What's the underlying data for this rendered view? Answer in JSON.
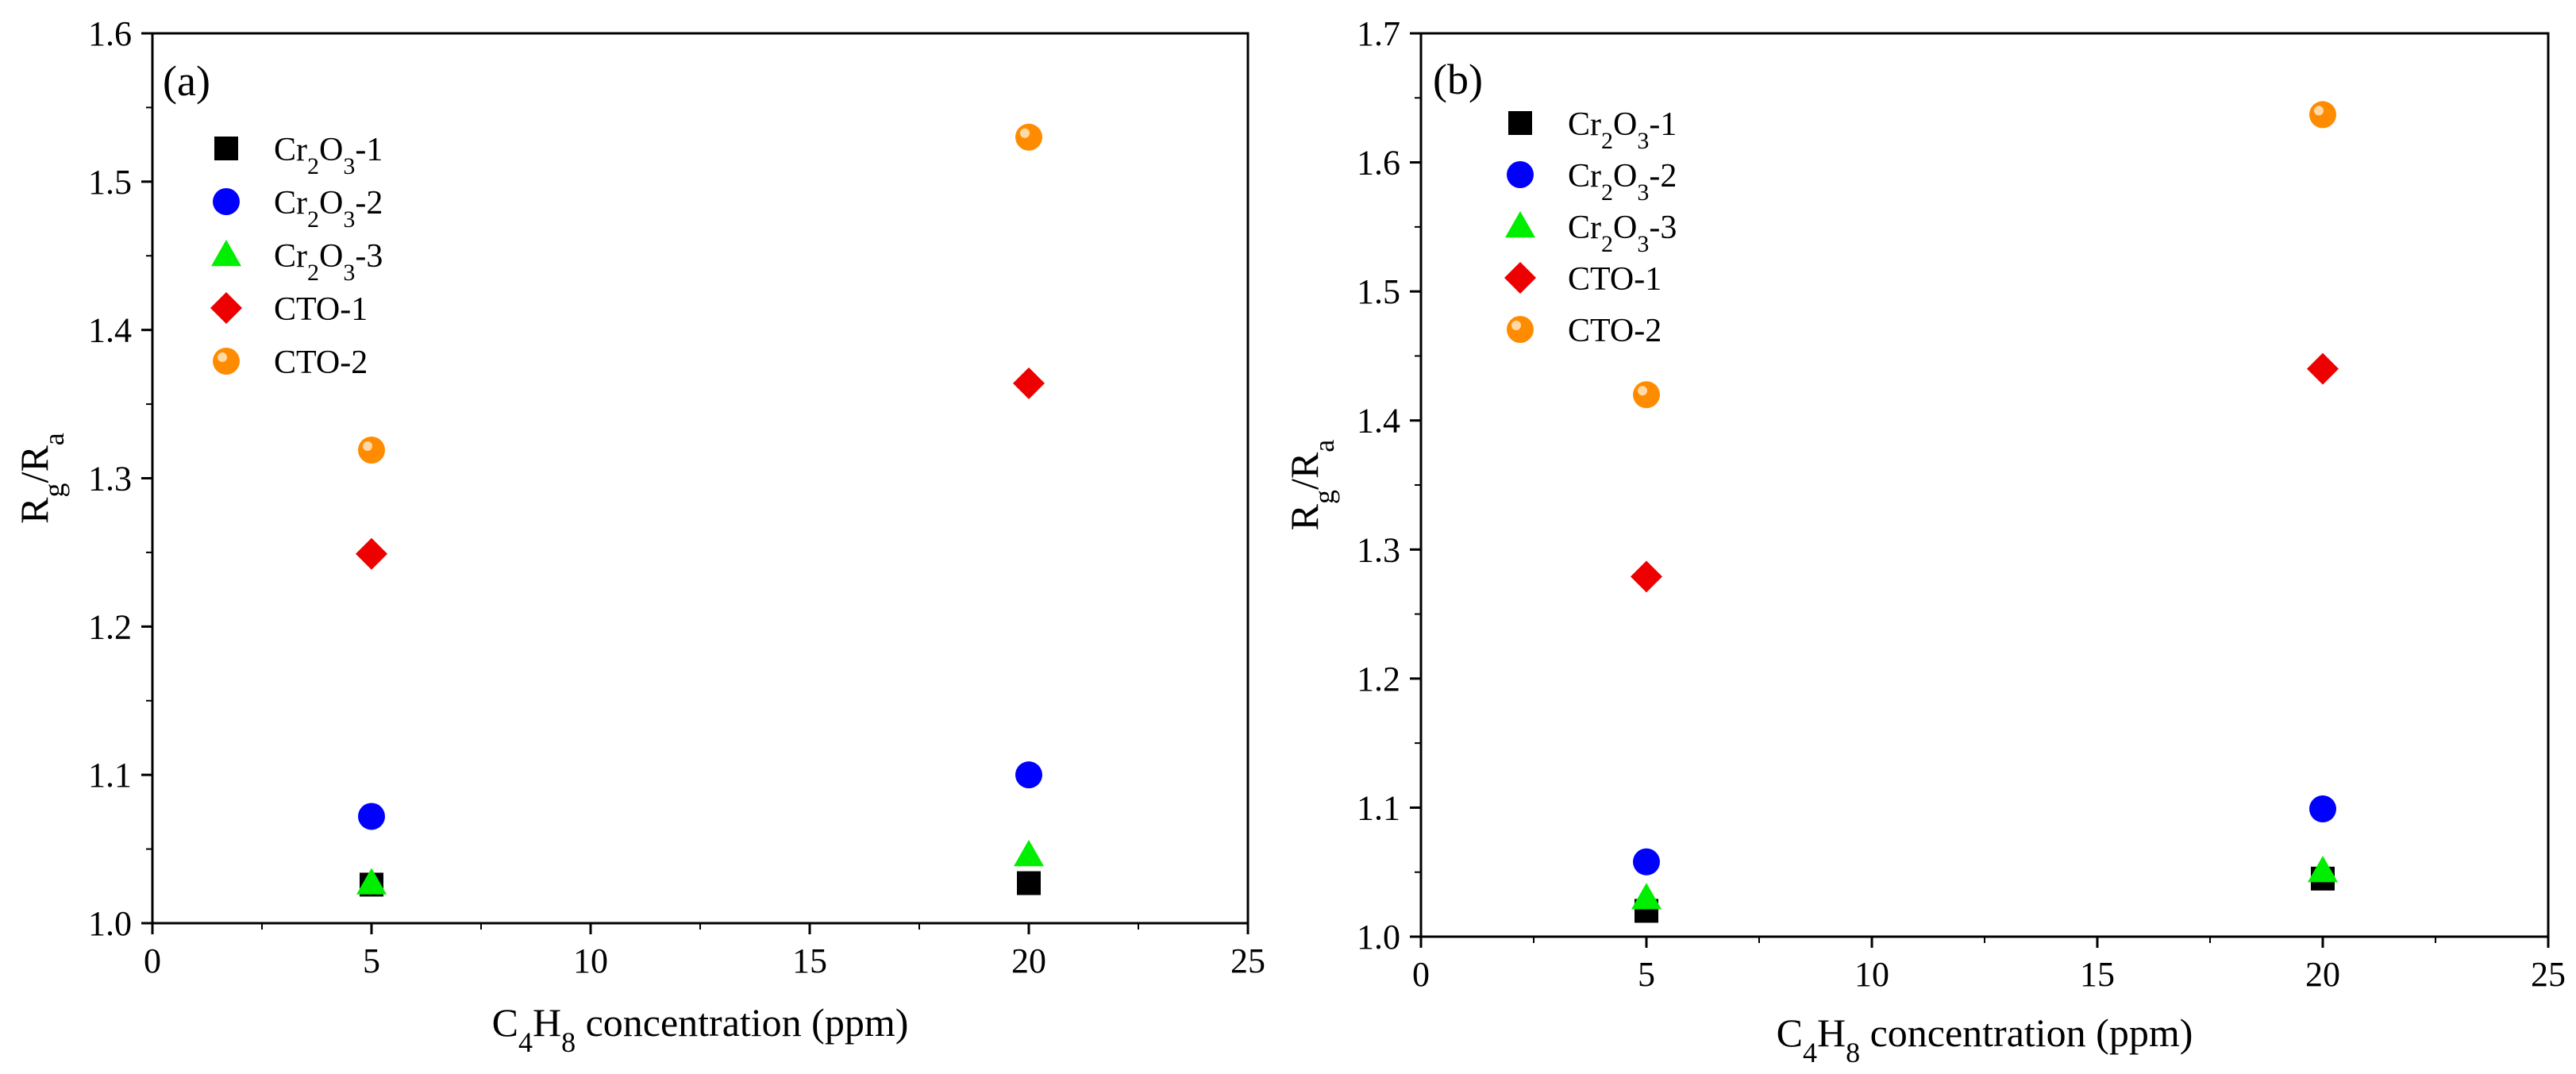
{
  "chart_data": [
    {
      "type": "scatter",
      "panel_label": "(a)",
      "xlabel": {
        "prefix": "C",
        "sub1": "4",
        "mid": "H",
        "sub2": "8",
        "suffix": " concentration (ppm)"
      },
      "ylabel": {
        "base1": "R",
        "sub1": "g",
        "sep": "/",
        "base2": "R",
        "sub2": "a"
      },
      "xlim": [
        0,
        25
      ],
      "ylim": [
        1.0,
        1.6
      ],
      "xticks": [
        "0",
        "5",
        "10",
        "15",
        "20",
        "25"
      ],
      "yticks": [
        "1.0",
        "1.1",
        "1.2",
        "1.3",
        "1.4",
        "1.5",
        "1.6"
      ],
      "grid": false,
      "legend_position": "top-left",
      "series": [
        {
          "name": "Cr2O3-1",
          "label": {
            "a": "Cr",
            "s1": "2",
            "b": "O",
            "s2": "3",
            "c": "-1"
          },
          "marker": "square",
          "color": "#000000",
          "x": [
            5,
            20
          ],
          "y": [
            1.026,
            1.027
          ]
        },
        {
          "name": "Cr2O3-2",
          "label": {
            "a": "Cr",
            "s1": "2",
            "b": "O",
            "s2": "3",
            "c": "-2"
          },
          "marker": "circle",
          "color": "#0000ff",
          "x": [
            5,
            20
          ],
          "y": [
            1.072,
            1.1
          ]
        },
        {
          "name": "Cr2O3-3",
          "label": {
            "a": "Cr",
            "s1": "2",
            "b": "O",
            "s2": "3",
            "c": "-3"
          },
          "marker": "triangle",
          "color": "#00ee00",
          "x": [
            5,
            20
          ],
          "y": [
            1.027,
            1.046
          ]
        },
        {
          "name": "CTO-1",
          "label": {
            "a": "CTO-1",
            "s1": "",
            "b": "",
            "s2": "",
            "c": ""
          },
          "marker": "diamond",
          "color": "#ee0000",
          "x": [
            5,
            20
          ],
          "y": [
            1.249,
            1.364
          ]
        },
        {
          "name": "CTO-2",
          "label": {
            "a": "CTO-2",
            "s1": "",
            "b": "",
            "s2": "",
            "c": ""
          },
          "marker": "orange-circle",
          "color": "#ff8c00",
          "x": [
            5,
            20
          ],
          "y": [
            1.319,
            1.53
          ]
        }
      ]
    },
    {
      "type": "scatter",
      "panel_label": "(b)",
      "xlabel": {
        "prefix": "C",
        "sub1": "4",
        "mid": "H",
        "sub2": "8",
        "suffix": " concentration (ppm)"
      },
      "ylabel": {
        "base1": "R",
        "sub1": "g",
        "sep": "/",
        "base2": "R",
        "sub2": "a"
      },
      "xlim": [
        0,
        25
      ],
      "ylim": [
        1.0,
        1.7
      ],
      "xticks": [
        "0",
        "5",
        "10",
        "15",
        "20",
        "25"
      ],
      "yticks": [
        "1.0",
        "1.1",
        "1.2",
        "1.3",
        "1.4",
        "1.5",
        "1.6",
        "1.7"
      ],
      "grid": false,
      "legend_position": "top-left",
      "series": [
        {
          "name": "Cr2O3-1",
          "label": {
            "a": "Cr",
            "s1": "2",
            "b": "O",
            "s2": "3",
            "c": "-1"
          },
          "marker": "square",
          "color": "#000000",
          "x": [
            5,
            20
          ],
          "y": [
            1.02,
            1.045
          ]
        },
        {
          "name": "Cr2O3-2",
          "label": {
            "a": "Cr",
            "s1": "2",
            "b": "O",
            "s2": "3",
            "c": "-2"
          },
          "marker": "circle",
          "color": "#0000ff",
          "x": [
            5,
            20
          ],
          "y": [
            1.058,
            1.099
          ]
        },
        {
          "name": "Cr2O3-3",
          "label": {
            "a": "Cr",
            "s1": "2",
            "b": "O",
            "s2": "3",
            "c": "-3"
          },
          "marker": "triangle",
          "color": "#00ee00",
          "x": [
            5,
            20
          ],
          "y": [
            1.03,
            1.051
          ]
        },
        {
          "name": "CTO-1",
          "label": {
            "a": "CTO-1",
            "s1": "",
            "b": "",
            "s2": "",
            "c": ""
          },
          "marker": "diamond",
          "color": "#ee0000",
          "x": [
            5,
            20
          ],
          "y": [
            1.279,
            1.44
          ]
        },
        {
          "name": "CTO-2",
          "label": {
            "a": "CTO-2",
            "s1": "",
            "b": "",
            "s2": "",
            "c": ""
          },
          "marker": "orange-circle",
          "color": "#ff8c00",
          "x": [
            5,
            20
          ],
          "y": [
            1.42,
            1.637
          ]
        }
      ]
    }
  ]
}
